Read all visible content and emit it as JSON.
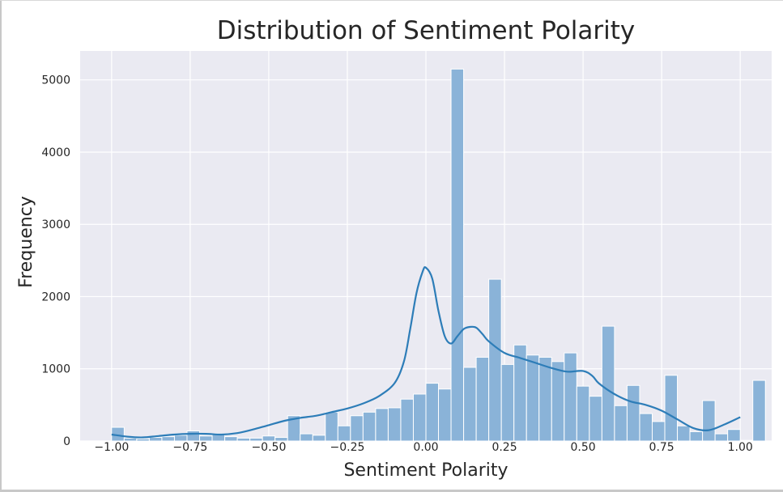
{
  "chart_data": {
    "type": "bar",
    "title": "Distribution of Sentiment Polarity",
    "xlabel": "Sentiment Polarity",
    "ylabel": "Frequency",
    "xlim": [
      -1.1,
      1.1
    ],
    "ylim": [
      0,
      5400
    ],
    "xticks": [
      -1.0,
      -0.75,
      -0.5,
      -0.25,
      0.0,
      0.25,
      0.5,
      0.75,
      1.0
    ],
    "xtick_labels": [
      "−1.00",
      "−0.75",
      "−0.50",
      "−0.25",
      "0.00",
      "0.25",
      "0.50",
      "0.75",
      "1.00"
    ],
    "yticks": [
      0,
      1000,
      2000,
      3000,
      4000,
      5000
    ],
    "ytick_labels": [
      "0",
      "1000",
      "2000",
      "3000",
      "4000",
      "5000"
    ],
    "bin_width": 0.04,
    "bin_start": -1.0,
    "counts": [
      190,
      40,
      30,
      50,
      60,
      80,
      140,
      70,
      100,
      60,
      40,
      40,
      70,
      50,
      350,
      100,
      80,
      400,
      210,
      350,
      400,
      450,
      460,
      580,
      650,
      800,
      720,
      5150,
      1020,
      1160,
      2240,
      1060,
      1330,
      1190,
      1160,
      1100,
      1220,
      760,
      620,
      1590,
      490,
      770,
      380,
      270,
      910,
      210,
      130,
      560,
      100,
      160,
      10,
      840
    ],
    "kde": {
      "x": [
        -1.0,
        -0.95,
        -0.9,
        -0.85,
        -0.8,
        -0.75,
        -0.7,
        -0.65,
        -0.6,
        -0.55,
        -0.5,
        -0.45,
        -0.4,
        -0.35,
        -0.3,
        -0.25,
        -0.2,
        -0.15,
        -0.1,
        -0.07,
        -0.05,
        -0.03,
        -0.01,
        0.0,
        0.02,
        0.04,
        0.06,
        0.08,
        0.1,
        0.12,
        0.14,
        0.16,
        0.18,
        0.2,
        0.25,
        0.3,
        0.35,
        0.4,
        0.45,
        0.5,
        0.53,
        0.55,
        0.6,
        0.65,
        0.7,
        0.75,
        0.8,
        0.85,
        0.9,
        0.95,
        1.0
      ],
      "y": [
        90,
        60,
        50,
        70,
        90,
        100,
        100,
        90,
        110,
        160,
        220,
        280,
        320,
        350,
        400,
        450,
        520,
        620,
        800,
        1100,
        1550,
        2050,
        2350,
        2400,
        2250,
        1800,
        1450,
        1350,
        1450,
        1550,
        1580,
        1570,
        1480,
        1380,
        1220,
        1150,
        1080,
        1010,
        960,
        970,
        900,
        800,
        650,
        550,
        500,
        420,
        300,
        180,
        150,
        230,
        330
      ]
    },
    "bar_color": "#8ab3d8",
    "line_color": "#2d7db8",
    "background": "#eaeaf2",
    "grid": true
  }
}
